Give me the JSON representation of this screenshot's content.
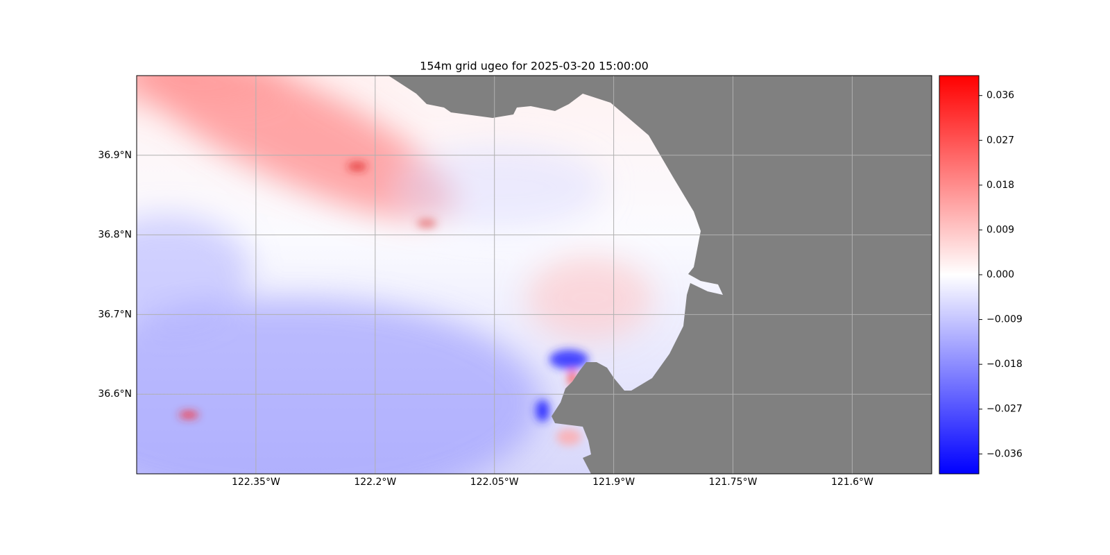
{
  "chart_data": {
    "type": "map",
    "title": "154m grid ugeo for 2025-03-20 15:00:00",
    "xlim": [
      -122.5,
      -121.5
    ],
    "ylim": [
      36.5,
      37.0
    ],
    "xticks": [
      {
        "value": -122.35,
        "label": "122.35°W"
      },
      {
        "value": -122.2,
        "label": "122.2°W"
      },
      {
        "value": -122.05,
        "label": "122.05°W"
      },
      {
        "value": -121.9,
        "label": "121.9°W"
      },
      {
        "value": -121.75,
        "label": "121.75°W"
      },
      {
        "value": -121.6,
        "label": "121.6°W"
      }
    ],
    "yticks": [
      {
        "value": 36.6,
        "label": "36.6°N"
      },
      {
        "value": 36.7,
        "label": "36.7°N"
      },
      {
        "value": 36.8,
        "label": "36.8°N"
      },
      {
        "value": 36.9,
        "label": "36.9°N"
      }
    ],
    "grid": true,
    "land_color": "#808080",
    "colorbar": {
      "clim": [
        -0.04,
        0.04
      ],
      "colors": [
        "#0000ff",
        "#ffffff",
        "#ff0000"
      ],
      "ticks": [
        0.036,
        0.027,
        0.018,
        0.009,
        {
          "value": 0,
          "label": "0.000"
        },
        {
          "value": -0.009,
          "label": "−0.009"
        },
        {
          "value": -0.018,
          "label": "−0.018"
        },
        {
          "value": -0.027,
          "label": "−0.027"
        },
        {
          "value": -0.036,
          "label": "−0.036"
        }
      ]
    }
  }
}
